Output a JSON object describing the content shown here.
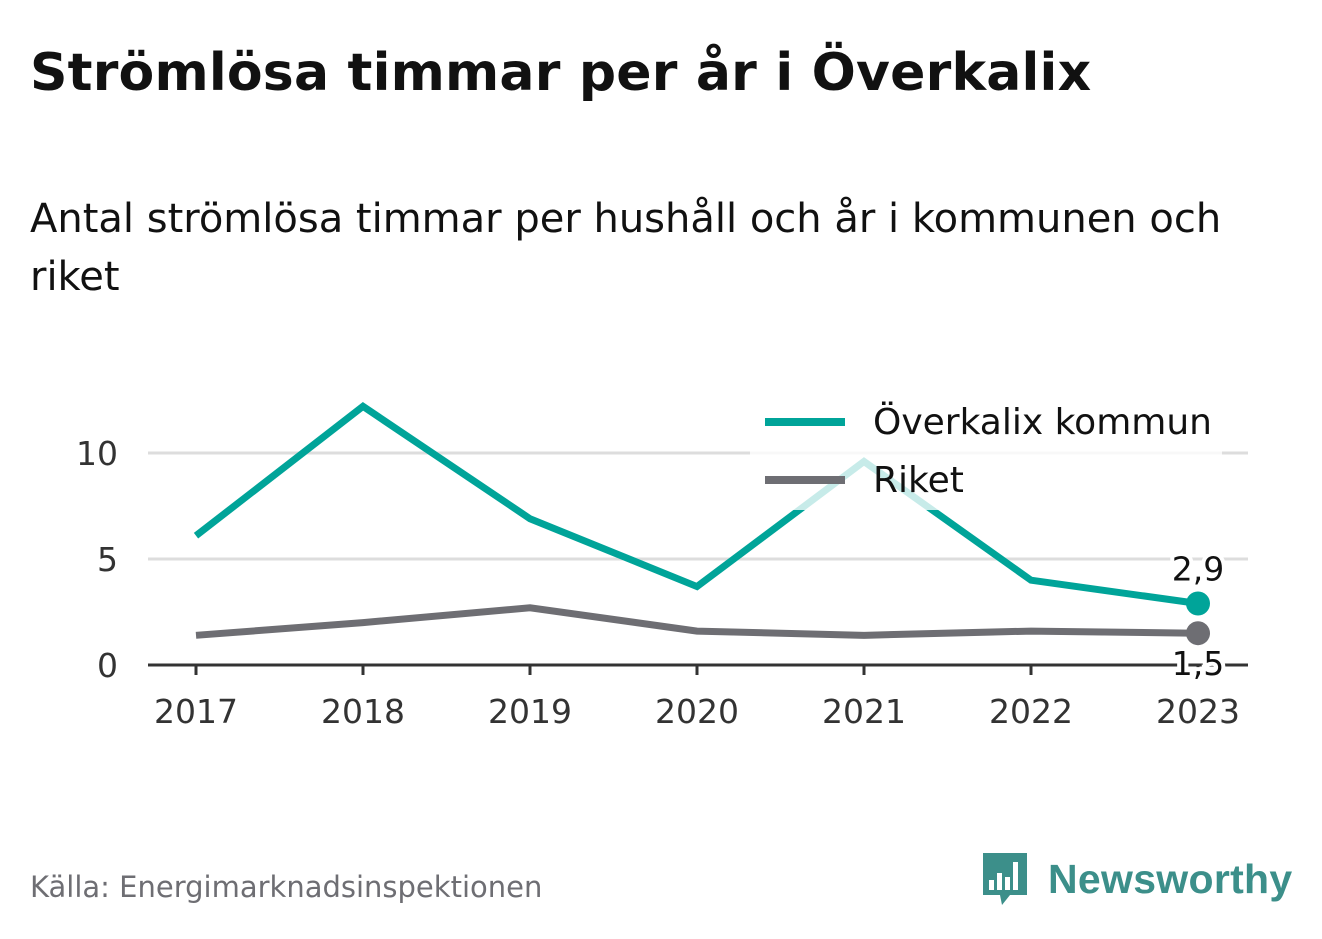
{
  "title": "Strömlösa timmar per år i Överkalix",
  "subtitle": "Antal strömlösa timmar per hushåll och år i kommunen och riket",
  "source": "Källa: Energimarknadsinspektionen",
  "brand": "Newsworthy",
  "colors": {
    "series_1": "#00a499",
    "series_2": "#6e6e73",
    "grid": "#dddddd",
    "axis": "#333333",
    "brand": "#3c8f8a"
  },
  "chart_data": {
    "type": "line",
    "x": [
      "2017",
      "2018",
      "2019",
      "2020",
      "2021",
      "2022",
      "2023"
    ],
    "series": [
      {
        "name": "Överkalix kommun",
        "values": [
          6.1,
          12.2,
          6.9,
          3.7,
          9.6,
          4.0,
          2.9
        ]
      },
      {
        "name": "Riket",
        "values": [
          1.4,
          2.0,
          2.7,
          1.6,
          1.4,
          1.6,
          1.5
        ]
      }
    ],
    "yticks": [
      "0",
      "5",
      "10"
    ],
    "ylim": [
      0,
      12.5
    ],
    "end_labels": [
      "2,9",
      "1,5"
    ],
    "grid": true,
    "legend_position": "top-right"
  }
}
